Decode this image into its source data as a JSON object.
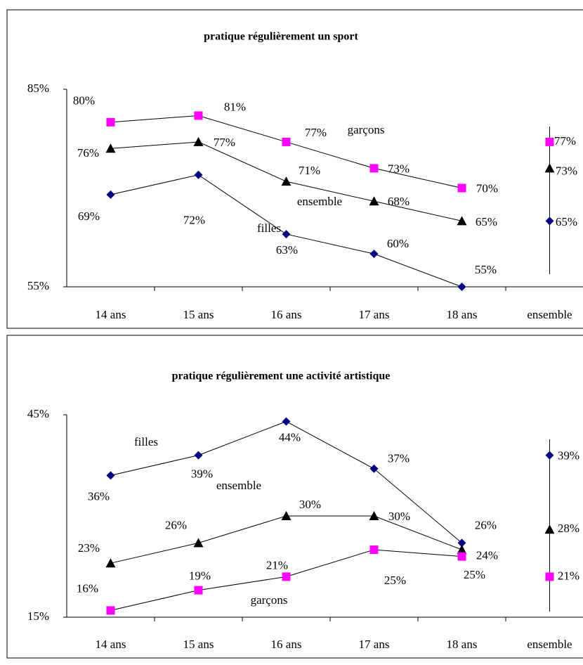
{
  "chart_data": [
    {
      "type": "line",
      "title": "pratique régulièrement un sport",
      "categories": [
        "14 ans",
        "15 ans",
        "16 ans",
        "17 ans",
        "18 ans",
        "ensemble"
      ],
      "ylim": [
        55,
        85
      ],
      "yticks": [
        {
          "value": 55,
          "label": "55%"
        },
        {
          "value": 85,
          "label": "85%"
        }
      ],
      "series": [
        {
          "name": "garçons",
          "color": "#ff00ff",
          "marker": "square",
          "values": [
            80,
            81,
            77,
            73,
            70,
            77
          ],
          "value_labels": [
            "80%",
            "81%",
            "77%",
            "73%",
            "70%",
            "77%"
          ]
        },
        {
          "name": "ensemble",
          "color": "#000000",
          "marker": "triangle",
          "values": [
            76,
            77,
            71,
            68,
            65,
            73
          ],
          "value_labels": [
            "76%",
            "77%",
            "71%",
            "68%",
            "65%",
            "73%"
          ]
        },
        {
          "name": "filles",
          "color": "#000080",
          "marker": "diamond",
          "values": [
            69,
            72,
            63,
            60,
            55,
            65
          ],
          "value_labels": [
            "69%",
            "72%",
            "63%",
            "60%",
            "55%",
            "65%"
          ]
        }
      ]
    },
    {
      "type": "line",
      "title": "pratique régulièrement une activité artistique",
      "categories": [
        "14 ans",
        "15 ans",
        "16 ans",
        "17 ans",
        "18 ans",
        "ensemble"
      ],
      "ylim": [
        15,
        45
      ],
      "yticks": [
        {
          "value": 15,
          "label": "15%"
        },
        {
          "value": 45,
          "label": "45%"
        }
      ],
      "series": [
        {
          "name": "filles",
          "color": "#000080",
          "marker": "diamond",
          "values": [
            36,
            39,
            44,
            37,
            26,
            39
          ],
          "value_labels": [
            "36%",
            "39%",
            "44%",
            "37%",
            "26%",
            "39%"
          ]
        },
        {
          "name": "ensemble",
          "color": "#000000",
          "marker": "triangle",
          "values": [
            23,
            26,
            30,
            30,
            25,
            28
          ],
          "value_labels": [
            "23%",
            "26%",
            "30%",
            "30%",
            "25%",
            "28%"
          ]
        },
        {
          "name": "garçons",
          "color": "#ff00ff",
          "marker": "square",
          "values": [
            16,
            19,
            21,
            25,
            24,
            21
          ],
          "value_labels": [
            "16%",
            "19%",
            "21%",
            "25%",
            "24%",
            "21%"
          ]
        }
      ]
    }
  ]
}
